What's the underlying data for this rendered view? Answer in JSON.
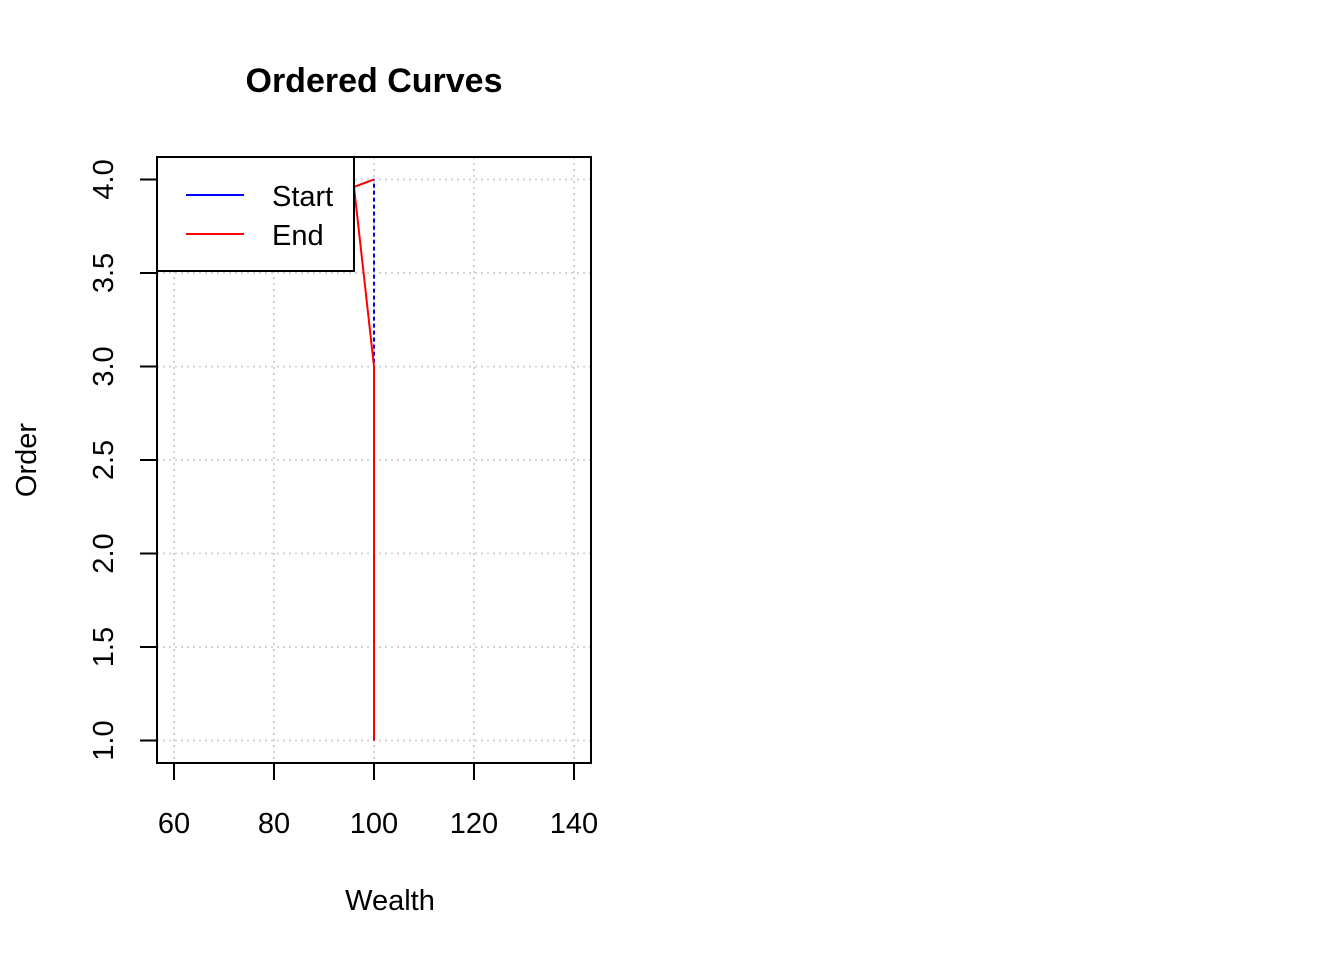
{
  "chart_data": {
    "type": "line",
    "title": "Ordered Curves",
    "xlabel": "Wealth",
    "ylabel": "Order",
    "xlim": [
      56.6,
      143.4
    ],
    "ylim": [
      0.88,
      4.12
    ],
    "xticks": [
      60,
      80,
      100,
      120,
      140
    ],
    "yticks": [
      1.0,
      1.5,
      2.0,
      2.5,
      3.0,
      3.5,
      4.0
    ],
    "xtick_labels": [
      "60",
      "80",
      "100",
      "120",
      "140"
    ],
    "ytick_labels": [
      "1.0",
      "1.5",
      "2.0",
      "2.5",
      "3.0",
      "3.5",
      "4.0"
    ],
    "grid": true,
    "legend_position": "top-left",
    "series": [
      {
        "name": "Start",
        "color": "#0000ff",
        "dash": "dashed",
        "points": [
          [
            100,
            1.0
          ],
          [
            100,
            2.0
          ],
          [
            100,
            3.0
          ],
          [
            100,
            4.0
          ]
        ]
      },
      {
        "name": "End",
        "color": "#ff0000",
        "dash": "solid",
        "points": [
          [
            100,
            1.0
          ],
          [
            100,
            2.0
          ],
          [
            100,
            3.0
          ],
          [
            96,
            3.96
          ],
          [
            100,
            4.0
          ]
        ]
      }
    ]
  }
}
